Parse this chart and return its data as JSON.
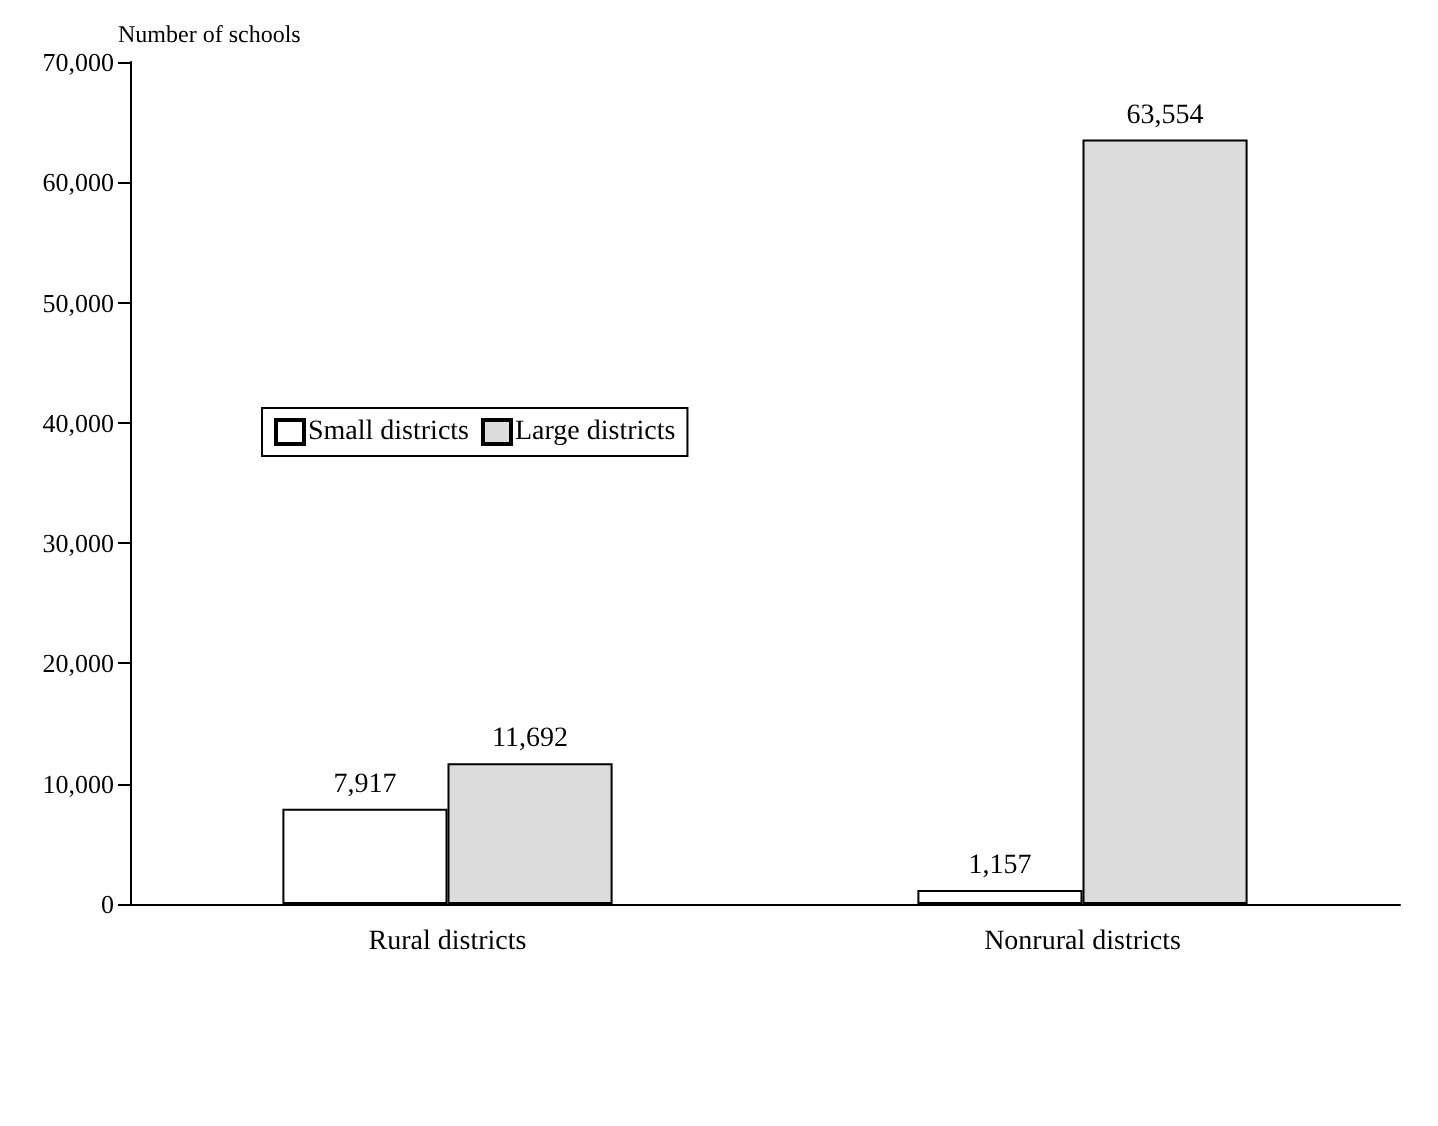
{
  "chart_data": {
    "type": "bar",
    "ylabel": "Number of schools",
    "categories": [
      "Rural districts",
      "Nonrural districts"
    ],
    "series": [
      {
        "name": "Small districts",
        "color": "#ffffff",
        "values": [
          7917,
          1157
        ],
        "value_labels": [
          "7,917",
          "1,157"
        ]
      },
      {
        "name": "Large districts",
        "color": "#dcdcdc",
        "values": [
          11692,
          63554
        ],
        "value_labels": [
          "11,692",
          "63,554"
        ]
      }
    ],
    "ylim": [
      0,
      70000
    ],
    "yticks": [
      0,
      {
        "value": 10000,
        "label": "10,000"
      },
      {
        "value": 20000,
        "label": "20,000"
      },
      {
        "value": 30000,
        "label": "30,000"
      },
      {
        "value": 40000,
        "label": "40,000"
      },
      {
        "value": 50000,
        "label": "50,000"
      },
      {
        "value": 60000,
        "label": "60,000"
      },
      {
        "value": 70000,
        "label": "70,000"
      }
    ],
    "grid": false,
    "legend": "top left"
  }
}
